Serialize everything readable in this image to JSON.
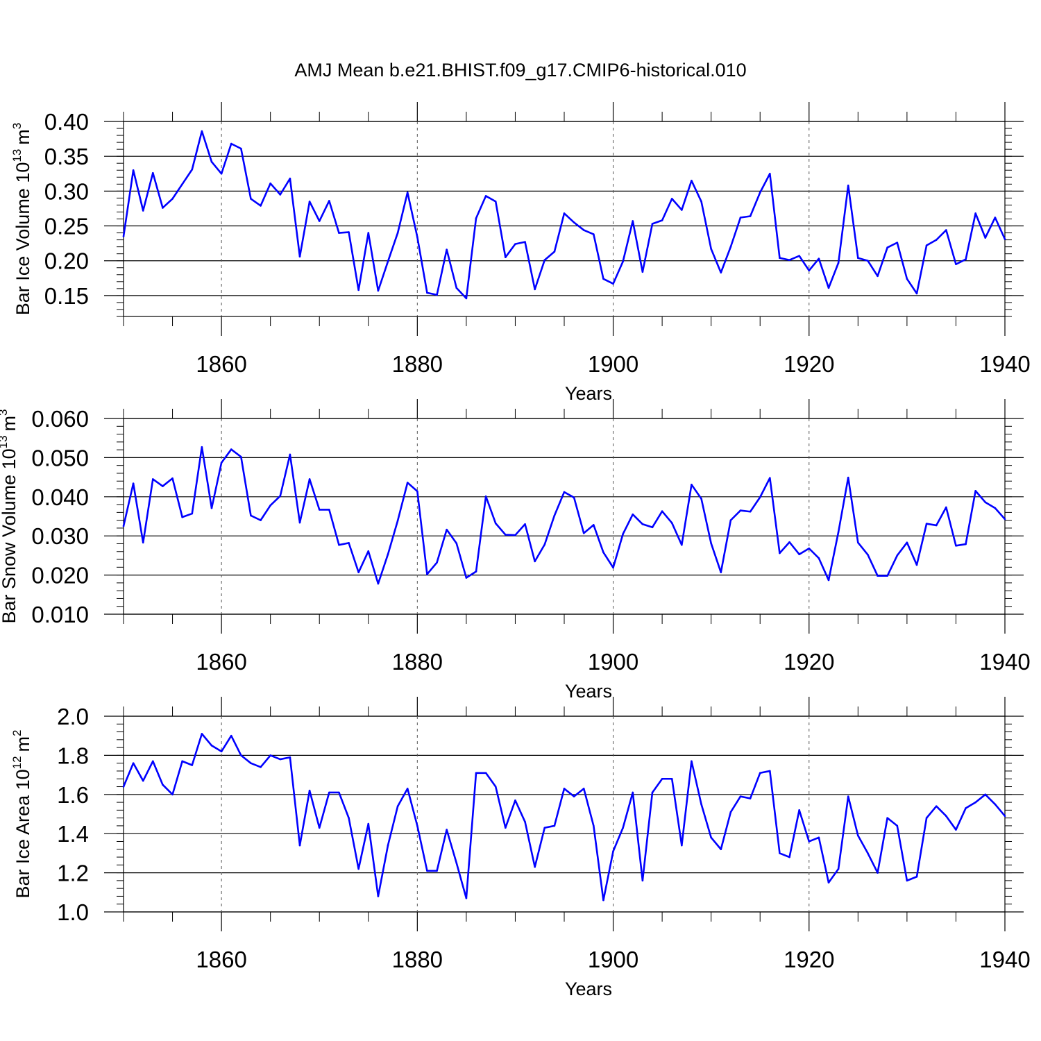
{
  "title": "AMJ Mean b.e21.BHIST.f09_g17.CMIP6-historical.010",
  "line_color": "#0000ff",
  "chart_data": [
    {
      "type": "line",
      "xlabel": "Years",
      "ylabel": "Bar Ice Volume 10",
      "ylabel_exp": "13",
      "ylabel_unit": "m",
      "ylabel_unit_exp": "3",
      "xlim": [
        1850,
        1940
      ],
      "ylim": [
        0.12,
        0.4
      ],
      "xticks": [
        1860,
        1880,
        1900,
        1920,
        1940
      ],
      "yticks": [
        0.15,
        0.2,
        0.25,
        0.3,
        0.35,
        0.4
      ],
      "ytick_labels": [
        "0.15",
        "0.20",
        "0.25",
        "0.30",
        "0.35",
        "0.40"
      ],
      "x_start": 1850,
      "values": [
        0.235,
        0.33,
        0.272,
        0.326,
        0.276,
        0.289,
        0.31,
        0.331,
        0.386,
        0.342,
        0.325,
        0.368,
        0.361,
        0.289,
        0.279,
        0.311,
        0.295,
        0.318,
        0.206,
        0.285,
        0.257,
        0.286,
        0.24,
        0.241,
        0.158,
        0.24,
        0.157,
        0.199,
        0.24,
        0.298,
        0.234,
        0.154,
        0.151,
        0.216,
        0.161,
        0.146,
        0.261,
        0.293,
        0.285,
        0.205,
        0.224,
        0.227,
        0.159,
        0.201,
        0.213,
        0.268,
        0.255,
        0.244,
        0.238,
        0.174,
        0.167,
        0.199,
        0.257,
        0.184,
        0.253,
        0.258,
        0.289,
        0.273,
        0.315,
        0.285,
        0.217,
        0.183,
        0.22,
        0.262,
        0.264,
        0.298,
        0.325,
        0.204,
        0.201,
        0.207,
        0.186,
        0.203,
        0.161,
        0.197,
        0.308,
        0.204,
        0.2,
        0.178,
        0.219,
        0.226,
        0.174,
        0.153,
        0.222,
        0.23,
        0.244,
        0.195,
        0.202,
        0.268,
        0.233,
        0.262,
        0.231
      ]
    },
    {
      "type": "line",
      "xlabel": "Years",
      "ylabel": "Bar Snow Volume 10",
      "ylabel_exp": "13",
      "ylabel_unit": "m",
      "ylabel_unit_exp": "3",
      "xlim": [
        1850,
        1940
      ],
      "ylim": [
        0.01,
        0.06
      ],
      "xticks": [
        1860,
        1880,
        1900,
        1920,
        1940
      ],
      "yticks": [
        0.01,
        0.02,
        0.03,
        0.04,
        0.05,
        0.06
      ],
      "ytick_labels": [
        "0.010",
        "0.020",
        "0.030",
        "0.040",
        "0.050",
        "0.060"
      ],
      "x_start": 1850,
      "values": [
        0.0325,
        0.0434,
        0.0283,
        0.0445,
        0.0427,
        0.0447,
        0.0348,
        0.0357,
        0.0527,
        0.0371,
        0.0487,
        0.0521,
        0.0502,
        0.0352,
        0.034,
        0.0378,
        0.0402,
        0.0508,
        0.0334,
        0.0445,
        0.0367,
        0.0367,
        0.0277,
        0.0282,
        0.0207,
        0.0261,
        0.0178,
        0.0253,
        0.0339,
        0.0436,
        0.0414,
        0.0202,
        0.0232,
        0.0316,
        0.0281,
        0.0193,
        0.0209,
        0.0401,
        0.0332,
        0.0303,
        0.0302,
        0.033,
        0.0235,
        0.0278,
        0.0352,
        0.0412,
        0.0398,
        0.0307,
        0.0328,
        0.0258,
        0.0219,
        0.0305,
        0.0355,
        0.033,
        0.0322,
        0.0363,
        0.0333,
        0.0277,
        0.0431,
        0.0395,
        0.0281,
        0.0207,
        0.034,
        0.0365,
        0.0362,
        0.0399,
        0.0448,
        0.0256,
        0.0284,
        0.0253,
        0.0268,
        0.0243,
        0.0187,
        0.031,
        0.0449,
        0.0283,
        0.0252,
        0.0198,
        0.0198,
        0.025,
        0.0283,
        0.0226,
        0.0331,
        0.0327,
        0.0373,
        0.0275,
        0.0279,
        0.0415,
        0.0386,
        0.0371,
        0.0343
      ]
    },
    {
      "type": "line",
      "xlabel": "Years",
      "ylabel": "Bar Ice Area 10",
      "ylabel_exp": "12",
      "ylabel_unit": "m",
      "ylabel_unit_exp": "2",
      "xlim": [
        1850,
        1940
      ],
      "ylim": [
        1.0,
        2.0
      ],
      "xticks": [
        1860,
        1880,
        1900,
        1920,
        1940
      ],
      "yticks": [
        1.0,
        1.2,
        1.4,
        1.6,
        1.8,
        2.0
      ],
      "ytick_labels": [
        "1.0",
        "1.2",
        "1.4",
        "1.6",
        "1.8",
        "2.0"
      ],
      "x_start": 1850,
      "values": [
        1.64,
        1.76,
        1.67,
        1.77,
        1.65,
        1.6,
        1.77,
        1.75,
        1.91,
        1.85,
        1.82,
        1.9,
        1.8,
        1.76,
        1.74,
        1.8,
        1.78,
        1.79,
        1.34,
        1.62,
        1.43,
        1.61,
        1.61,
        1.48,
        1.22,
        1.45,
        1.08,
        1.34,
        1.54,
        1.63,
        1.44,
        1.21,
        1.21,
        1.42,
        1.25,
        1.07,
        1.71,
        1.71,
        1.64,
        1.43,
        1.57,
        1.46,
        1.23,
        1.43,
        1.44,
        1.63,
        1.59,
        1.63,
        1.44,
        1.06,
        1.31,
        1.43,
        1.61,
        1.16,
        1.61,
        1.68,
        1.68,
        1.34,
        1.77,
        1.55,
        1.38,
        1.32,
        1.51,
        1.59,
        1.58,
        1.71,
        1.72,
        1.3,
        1.28,
        1.52,
        1.36,
        1.38,
        1.15,
        1.22,
        1.59,
        1.39,
        1.3,
        1.2,
        1.48,
        1.44,
        1.16,
        1.18,
        1.48,
        1.54,
        1.49,
        1.42,
        1.53,
        1.56,
        1.6,
        1.55,
        1.49
      ]
    }
  ]
}
